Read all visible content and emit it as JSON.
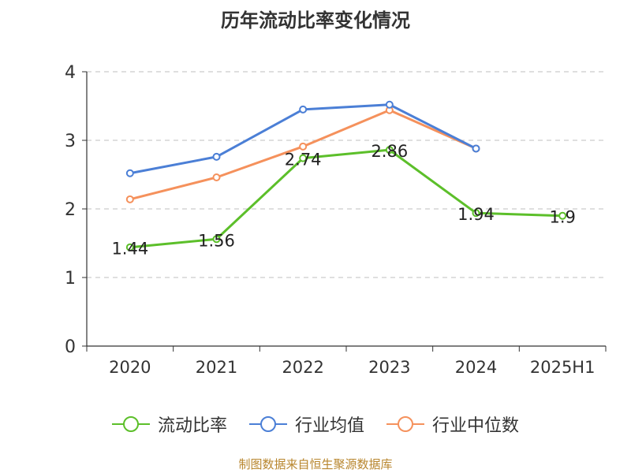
{
  "title": "历年流动比率变化情况",
  "source": "制图数据来自恒生聚源数据库",
  "colors": {
    "grid": "#cccccc",
    "axis": "#333333",
    "text": "#333333"
  },
  "chart_data": {
    "type": "line",
    "categories": [
      "2020",
      "2021",
      "2022",
      "2023",
      "2024",
      "2025H1"
    ],
    "ylim": [
      0,
      4
    ],
    "yticks": [
      "0",
      "1",
      "2",
      "3",
      "4"
    ],
    "grid": true,
    "legend_position": "bottom",
    "series": [
      {
        "name": "流动比率",
        "color": "#5cbf2a",
        "values": [
          1.44,
          1.56,
          2.74,
          2.86,
          1.94,
          1.9
        ],
        "labels": [
          "1.44",
          "1.56",
          "2.74",
          "2.86",
          "1.94",
          "1.9"
        ]
      },
      {
        "name": "行业均值",
        "color": "#4b7fd6",
        "values": [
          2.52,
          2.76,
          3.45,
          3.52,
          2.88,
          null
        ]
      },
      {
        "name": "行业中位数",
        "color": "#f5915c",
        "values": [
          2.14,
          2.46,
          2.91,
          3.44,
          2.88,
          null
        ]
      }
    ]
  }
}
